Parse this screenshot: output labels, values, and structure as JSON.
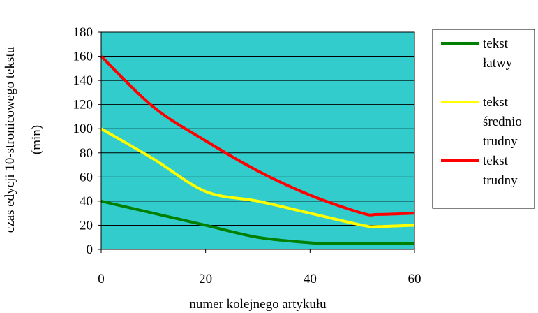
{
  "chart_data": {
    "type": "line",
    "title": "",
    "xlabel": "numer kolejnego artykułu",
    "ylabel_lines": [
      "czas edycji 10-stronicowego tekstu",
      "(min)"
    ],
    "xlim": [
      0,
      60
    ],
    "ylim": [
      0,
      180
    ],
    "xticks": [
      0,
      20,
      40,
      60
    ],
    "yticks": [
      0,
      20,
      40,
      60,
      80,
      100,
      120,
      140,
      160,
      180
    ],
    "plot_background": "#33CCCC",
    "grid": "horizontal",
    "legend_position": "right",
    "series": [
      {
        "name_lines": [
          "tekst",
          "łatwy"
        ],
        "color": "#008000",
        "x": [
          0,
          10,
          20,
          30,
          40,
          44,
          50,
          60
        ],
        "y": [
          40,
          30,
          20,
          10,
          5.5,
          5,
          5,
          5
        ]
      },
      {
        "name_lines": [
          "tekst",
          "średnio",
          "trudny"
        ],
        "color": "#FFFF00",
        "x": [
          0,
          10,
          20,
          30,
          40,
          50,
          53,
          60
        ],
        "y": [
          100,
          75,
          48,
          40,
          30,
          20,
          19,
          20
        ]
      },
      {
        "name_lines": [
          "tekst",
          "trudny"
        ],
        "color": "#FF0000",
        "x": [
          0,
          10,
          20,
          30,
          40,
          50,
          53,
          60
        ],
        "y": [
          160,
          118,
          90,
          65,
          45,
          30,
          29,
          30
        ]
      }
    ]
  }
}
